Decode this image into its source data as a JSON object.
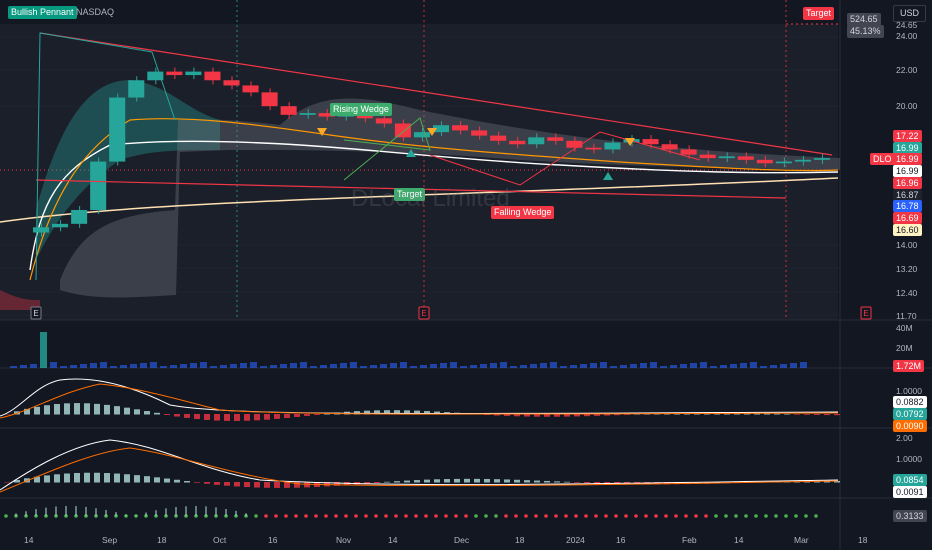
{
  "header": {
    "symbol_badge": "Bullish Pennant",
    "symbol_prefix": "DL",
    "symbol_suffix": "C",
    "exchange": "NASDAQ",
    "currency_button": "USD",
    "watermark": "DLocal Limited",
    "watermark_interval": "1D"
  },
  "price_axis": {
    "labels": [
      "24.65",
      "24.00",
      "22.00",
      "20.00",
      "14.00",
      "13.20",
      "12.40",
      "11.70"
    ],
    "target_tag": "Target",
    "measure_box": [
      "524.65",
      "45.13%"
    ],
    "price_chips": [
      {
        "text": "17.22",
        "bg": "#f23645",
        "fg": "#ffffff"
      },
      {
        "text": "16.99",
        "bg": "#26a69a",
        "fg": "#ffffff"
      },
      {
        "text": "16.99",
        "bg": "#f23645",
        "fg": "#ffffff"
      },
      {
        "text": "16.99",
        "bg": "#ffffff",
        "fg": "#131722"
      },
      {
        "text": "16.96",
        "bg": "#f23645",
        "fg": "#ffffff"
      },
      {
        "text": "16.87",
        "bg": "#1e222d",
        "fg": "#d1d4dc"
      },
      {
        "text": "16.78",
        "bg": "#2962ff",
        "fg": "#ffffff"
      },
      {
        "text": "16.69",
        "bg": "#f23645",
        "fg": "#ffffff"
      },
      {
        "text": "16.60",
        "bg": "#fff3c4",
        "fg": "#131722"
      }
    ],
    "symbol_tag": "DLO"
  },
  "annotations": {
    "rising_wedge": "Rising Wedge",
    "falling_wedge": "Falling Wedge",
    "target_mid": "Target",
    "earnings_marker": "E"
  },
  "volume_pane": {
    "axis": [
      "40M",
      "20M"
    ],
    "chip": "1.72M"
  },
  "macd_pane_1": {
    "axis": [
      "1.0000"
    ],
    "chips": [
      "0.0882",
      "0.0792",
      "0.0090"
    ]
  },
  "macd_pane_2": {
    "axis": [
      "2.00",
      "1.0000"
    ],
    "chips": [
      "0.0854",
      "0.0091"
    ]
  },
  "osc_pane": {
    "chip": "0.3133"
  },
  "time_axis": [
    "14",
    "Sep",
    "18",
    "Oct",
    "16",
    "Nov",
    "14",
    "Dec",
    "18",
    "2024",
    "16",
    "Feb",
    "14",
    "Mar",
    "18"
  ],
  "colors": {
    "up": "#26a69a",
    "down": "#f23645",
    "bg": "#131722",
    "grid": "#1f2330"
  },
  "chart_data": {
    "type": "candlestick",
    "title": "DLocal Limited · 1D · NASDAQ",
    "y_ticks": [
      24.0,
      22.0,
      20.0,
      14.0,
      13.2,
      12.4,
      11.7
    ],
    "x_tick_labels": [
      "14",
      "Sep",
      "18",
      "Oct",
      "16",
      "Nov",
      "14",
      "Dec",
      "18",
      "2024",
      "16",
      "Feb",
      "14",
      "Mar",
      "18"
    ],
    "close_series_approx": [
      13.0,
      13.2,
      14.0,
      16.8,
      20.5,
      21.5,
      22.0,
      21.8,
      22.0,
      21.5,
      21.2,
      20.8,
      20.0,
      19.5,
      19.6,
      19.4,
      19.7,
      19.3,
      19.0,
      18.2,
      18.5,
      18.9,
      18.6,
      18.3,
      18.0,
      17.8,
      18.2,
      18.0,
      17.6,
      17.5,
      17.9,
      18.1,
      17.8,
      17.5,
      17.2,
      17.0,
      17.1,
      16.9,
      16.7,
      16.8,
      16.9,
      17.0
    ],
    "last_price": 16.99,
    "grid": true
  }
}
